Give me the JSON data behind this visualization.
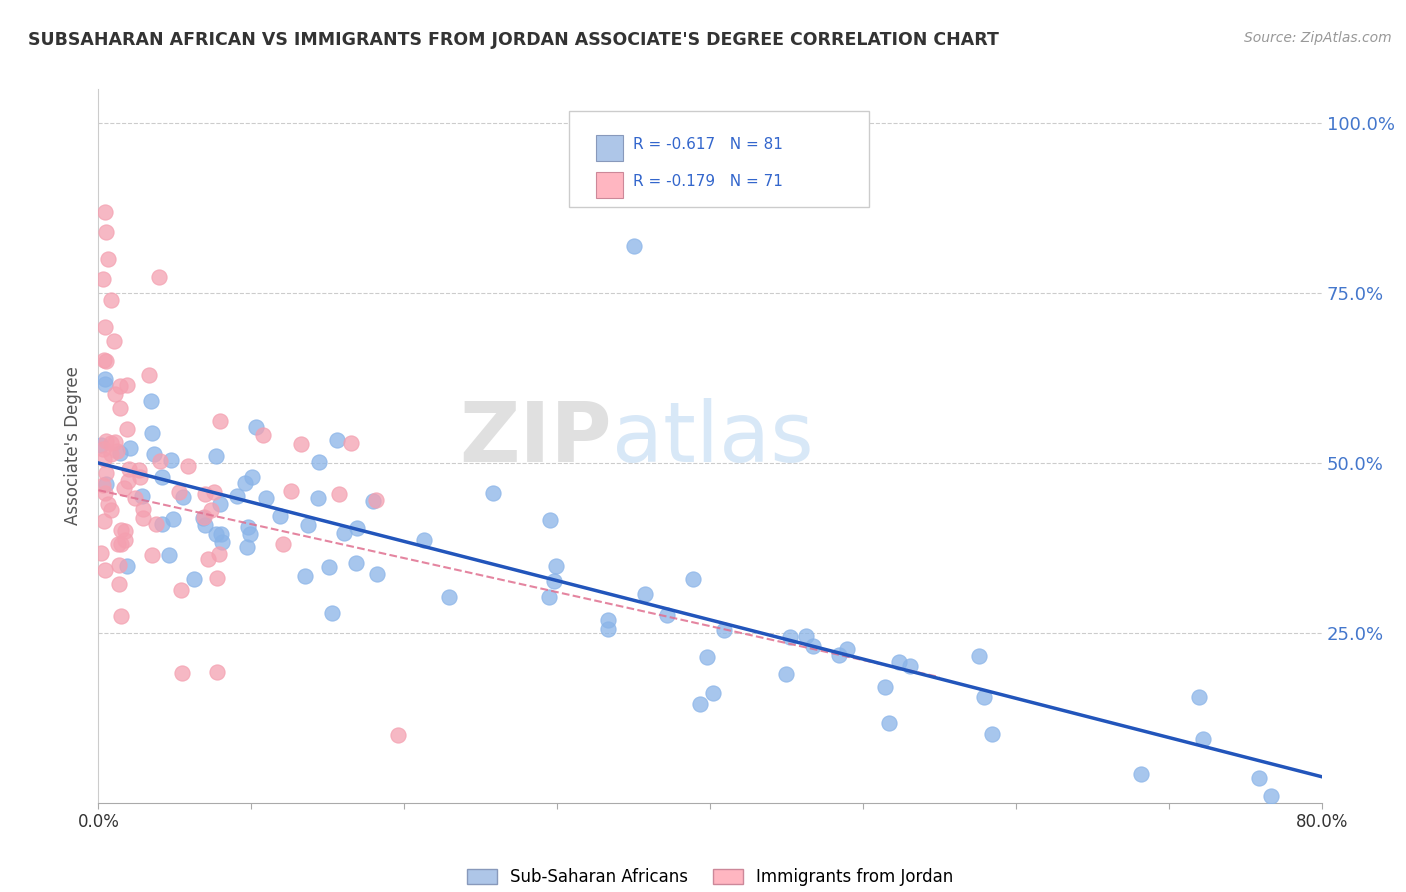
{
  "title": "SUBSAHARAN AFRICAN VS IMMIGRANTS FROM JORDAN ASSOCIATE'S DEGREE CORRELATION CHART",
  "source_text": "Source: ZipAtlas.com",
  "ylabel": "Associate's Degree",
  "legend_blue_r": "R = -0.617",
  "legend_blue_n": "N = 81",
  "legend_pink_r": "R = -0.179",
  "legend_pink_n": "N = 71",
  "legend_label_blue": "Sub-Saharan Africans",
  "legend_label_pink": "Immigrants from Jordan",
  "blue_scatter_color": "#8AB4E8",
  "pink_scatter_color": "#F4A0B0",
  "blue_legend_fill": "#AEC6E8",
  "pink_legend_fill": "#FFB6C1",
  "trend_blue_color": "#2255BB",
  "trend_pink_color": "#E07090",
  "watermark_color": "#D0E0F0",
  "title_color": "#333333",
  "source_color": "#999999",
  "ytick_color": "#4477CC",
  "xtick_color": "#333333",
  "ylabel_color": "#555555",
  "grid_color": "#CCCCCC",
  "xmin": 0.0,
  "xmax": 0.8,
  "ymin": 0.0,
  "ymax": 1.05,
  "yticks": [
    0.25,
    0.5,
    0.75,
    1.0
  ],
  "ytick_labels": [
    "25.0%",
    "50.0%",
    "75.0%",
    "100.0%"
  ],
  "blue_R": -0.617,
  "blue_N": 81,
  "pink_R": -0.179,
  "pink_N": 71
}
